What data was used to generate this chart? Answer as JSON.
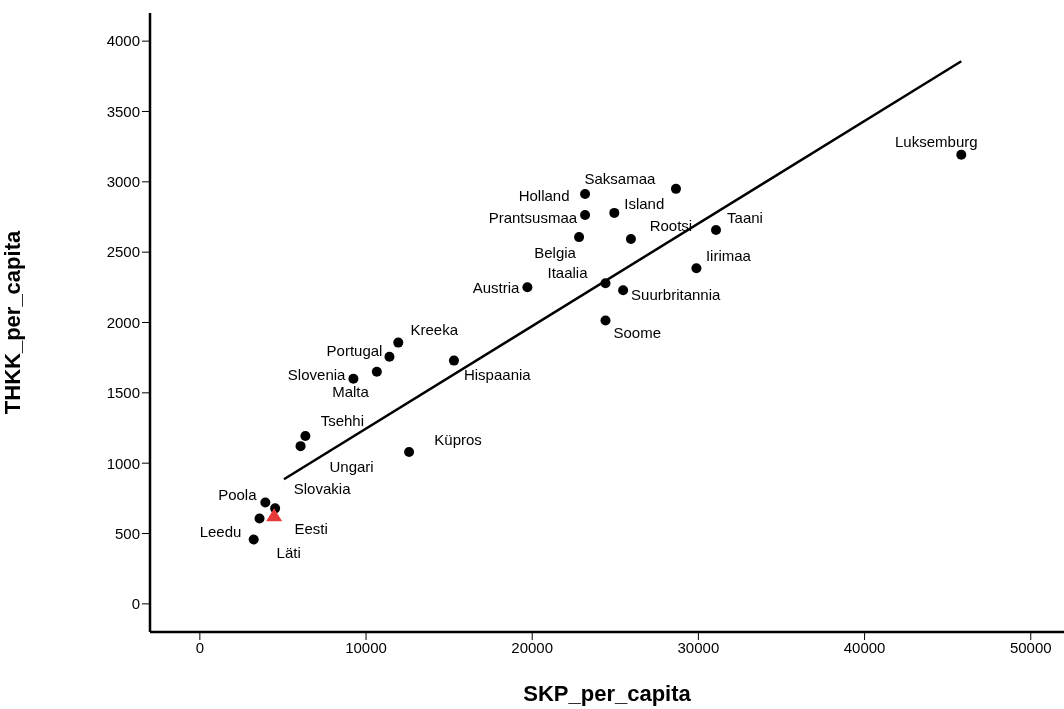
{
  "chart_data": {
    "type": "scatter",
    "xlabel": "SKP_per_capita",
    "ylabel": "THKK_per_capita",
    "xlim": [
      -3000,
      52000
    ],
    "ylim": [
      -200,
      4200
    ],
    "xticks": [
      0,
      10000,
      20000,
      30000,
      40000,
      50000
    ],
    "yticks": [
      0,
      500,
      1000,
      1500,
      2000,
      2500,
      3000,
      3500,
      4000
    ],
    "grid": false,
    "legend": false,
    "series": [
      {
        "marker": "circle",
        "color": "#000000",
        "x": [
          45820,
          28650,
          23180,
          24940,
          23180,
          25940,
          22820,
          31060,
          29880,
          24410,
          25470,
          19710,
          24410,
          11940,
          11410,
          10650,
          9240,
          15290,
          6350,
          6060,
          12590,
          3940,
          4530,
          3590,
          3240
        ],
        "values": [
          3193,
          2950,
          2914,
          2779,
          2764,
          2593,
          2607,
          2657,
          2386,
          2279,
          2229,
          2250,
          2014,
          1857,
          1757,
          1650,
          1600,
          1729,
          1193,
          1121,
          1079,
          721,
          679,
          607,
          457
        ]
      },
      {
        "marker": "triangle",
        "color": "#e8393a",
        "x": [
          4470
        ],
        "values": [
          629
        ]
      },
      {
        "type": "line",
        "marker": "none",
        "color": "#000000",
        "x": [
          5060,
          45820
        ],
        "values": [
          886,
          3857
        ]
      }
    ],
    "annotations": [
      {
        "text": "Luksemburg",
        "x": 45820,
        "y": 3193
      },
      {
        "text": "Saksamaa",
        "x": 28650,
        "y": 2950
      },
      {
        "text": "Holland",
        "x": 23180,
        "y": 2914
      },
      {
        "text": "Island",
        "x": 24940,
        "y": 2779
      },
      {
        "text": "Prantsusmaa",
        "x": 23180,
        "y": 2764
      },
      {
        "text": "Rootsi",
        "x": 25940,
        "y": 2593
      },
      {
        "text": "Belgia",
        "x": 22820,
        "y": 2607
      },
      {
        "text": "Taani",
        "x": 31060,
        "y": 2657
      },
      {
        "text": "Iirimaa",
        "x": 29880,
        "y": 2386
      },
      {
        "text": "Itaalia",
        "x": 24410,
        "y": 2279
      },
      {
        "text": "Suurbritannia",
        "x": 25470,
        "y": 2229
      },
      {
        "text": "Austria",
        "x": 19710,
        "y": 2250
      },
      {
        "text": "Soome",
        "x": 24410,
        "y": 2014
      },
      {
        "text": "Kreeka",
        "x": 11940,
        "y": 1857
      },
      {
        "text": "Portugal",
        "x": 11410,
        "y": 1757
      },
      {
        "text": "Malta",
        "x": 10650,
        "y": 1650
      },
      {
        "text": "Slovenia",
        "x": 9240,
        "y": 1600
      },
      {
        "text": "Hispaania",
        "x": 15290,
        "y": 1729
      },
      {
        "text": "Tsehhi",
        "x": 6350,
        "y": 1193
      },
      {
        "text": "Ungari",
        "x": 6060,
        "y": 1121
      },
      {
        "text": "Küpros",
        "x": 12590,
        "y": 1079
      },
      {
        "text": "Poola",
        "x": 3940,
        "y": 721
      },
      {
        "text": "Slovakia",
        "x": 4530,
        "y": 679
      },
      {
        "text": "Leedu",
        "x": 3590,
        "y": 607
      },
      {
        "text": "Eesti",
        "x": 4470,
        "y": 629
      },
      {
        "text": "Läti",
        "x": 3240,
        "y": 457
      }
    ]
  }
}
